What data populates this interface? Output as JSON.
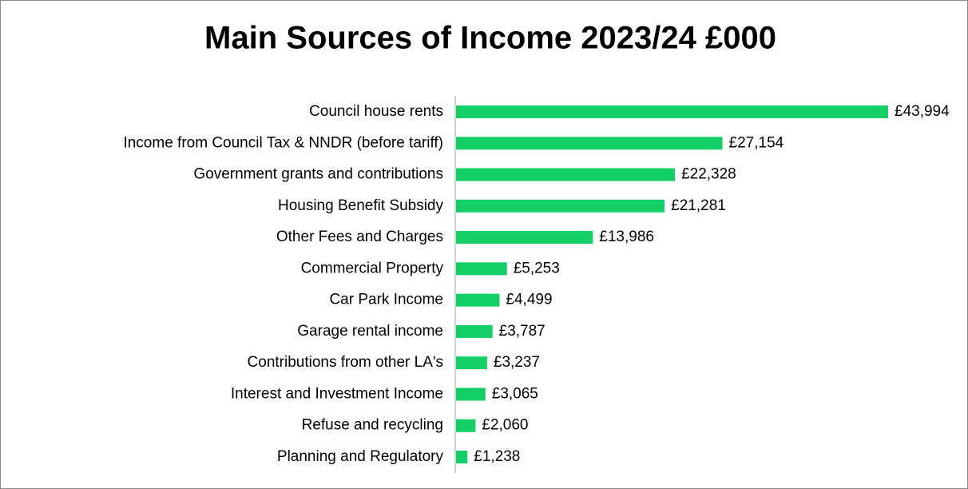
{
  "chart_data": {
    "type": "barh",
    "title": "Main Sources of Income 2023/24 £000",
    "color": "#12cf66",
    "categories": [
      "Council house rents",
      "Income from Council Tax & NNDR (before tariff)",
      "Government grants and contributions",
      "Housing Benefit Subsidy",
      "Other Fees and Charges",
      "Commercial Property",
      "Car Park Income",
      "Garage rental income",
      "Contributions from other LA's",
      "Interest and Investment Income",
      "Refuse and recycling",
      "Planning and Regulatory"
    ],
    "values": [
      43994,
      27154,
      22328,
      21281,
      13986,
      5253,
      4499,
      3787,
      3237,
      3065,
      2060,
      1238
    ],
    "value_labels": [
      "£43,994",
      "£27,154",
      "£22,328",
      "£21,281",
      "£13,986",
      "£5,253",
      "£4,499",
      "£3,787",
      "£3,237",
      "£3,065",
      "£2,060",
      "£1,238"
    ]
  }
}
